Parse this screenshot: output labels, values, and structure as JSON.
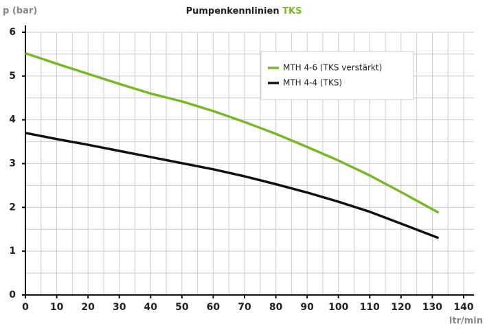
{
  "chart_data": {
    "type": "line",
    "title": "Pumpenkennlinien",
    "title_highlight": "TKS",
    "title_highlight_color": "#76b82a",
    "y_label": "p (bar)",
    "x_label": "ltr/min",
    "x": [
      0,
      10,
      20,
      30,
      40,
      50,
      60,
      70,
      80,
      90,
      100,
      110,
      120,
      132
    ],
    "series": [
      {
        "name": "MTH 4-6 (TKS verstärkt)",
        "color": "#76b82a",
        "values": [
          5.52,
          5.28,
          5.05,
          4.82,
          4.6,
          4.42,
          4.2,
          3.95,
          3.68,
          3.38,
          3.07,
          2.73,
          2.35,
          1.88
        ]
      },
      {
        "name": "MTH 4-4 (TKS)",
        "color": "#111111",
        "values": [
          3.7,
          3.56,
          3.43,
          3.29,
          3.15,
          3.01,
          2.87,
          2.71,
          2.53,
          2.34,
          2.13,
          1.9,
          1.63,
          1.3
        ]
      }
    ],
    "xlim": [
      0,
      140
    ],
    "xticks": [
      0,
      10,
      20,
      30,
      40,
      50,
      60,
      70,
      80,
      90,
      100,
      110,
      120,
      130,
      140
    ],
    "ylim": [
      0,
      6
    ],
    "yticks": [
      0,
      1,
      2,
      3,
      4,
      5,
      6
    ],
    "x_minor_grid": [
      5,
      15,
      25,
      35,
      45,
      55,
      65,
      75,
      85,
      95,
      105,
      115,
      125,
      135
    ],
    "y_minor_grid": [
      0.5,
      1.5,
      2.5,
      3.5,
      4.5,
      5.5
    ],
    "grid": true,
    "legend": "upper right"
  }
}
